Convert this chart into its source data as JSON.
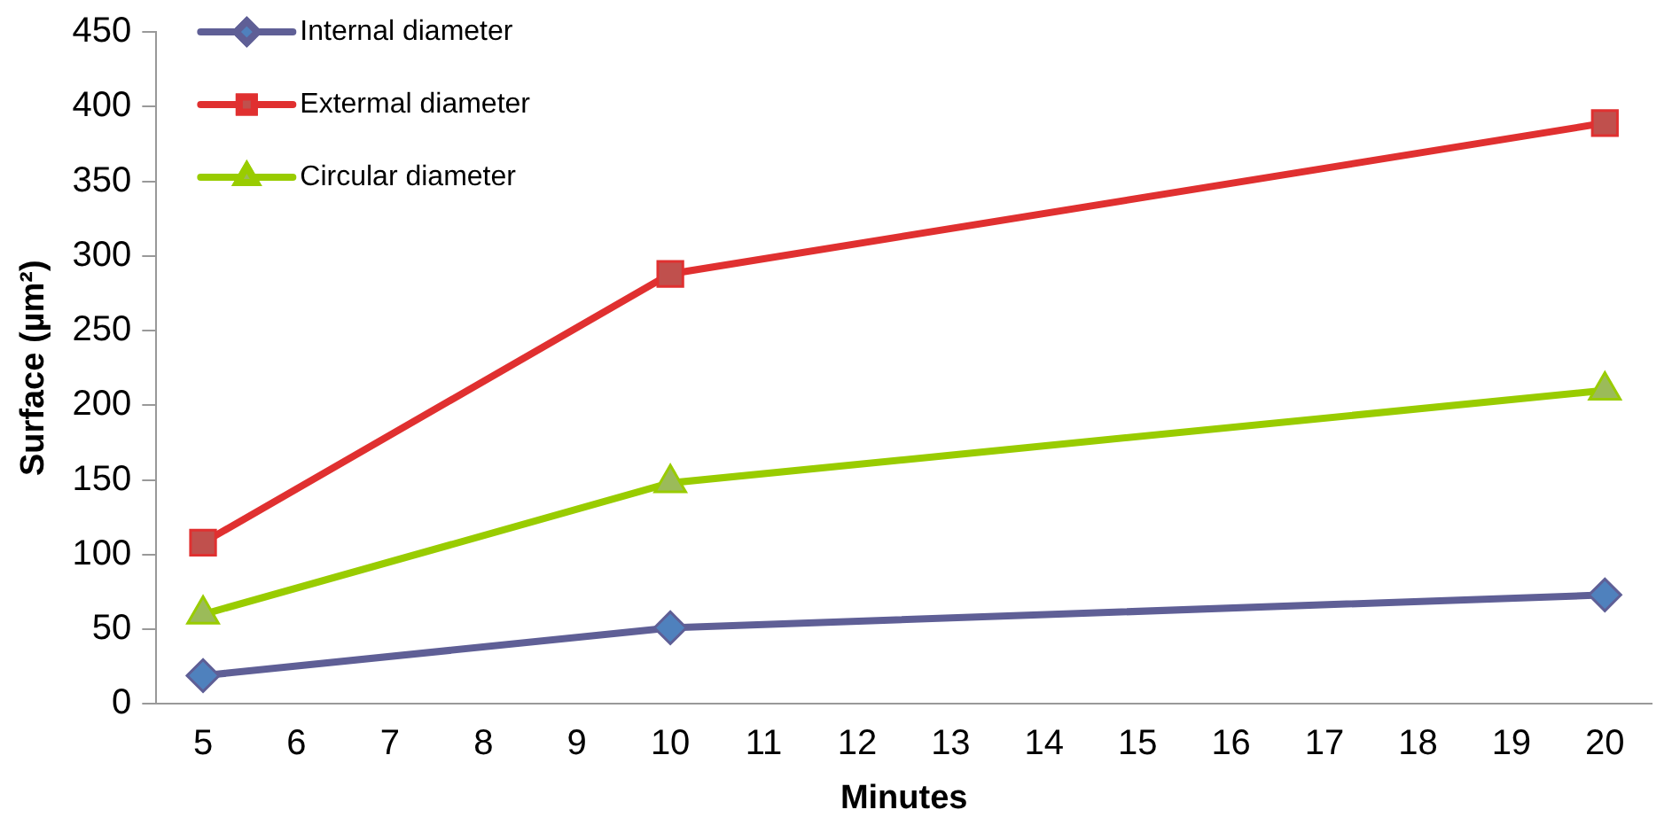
{
  "chart_data": {
    "type": "line",
    "xlabel": "Minutes",
    "ylabel": "Surface (µm²)",
    "categories": [
      "5",
      "6",
      "7",
      "8",
      "9",
      "10",
      "11",
      "12",
      "13",
      "14",
      "15",
      "16",
      "17",
      "18",
      "19",
      "20"
    ],
    "series": [
      {
        "name": "Internal diameter",
        "color": "#5f5f96",
        "marker": "diamond",
        "values": [
          19,
          null,
          null,
          null,
          null,
          51,
          null,
          null,
          null,
          null,
          null,
          null,
          null,
          null,
          null,
          73
        ]
      },
      {
        "name": "Extermal diameter",
        "color": "#e03030",
        "marker": "square",
        "values": [
          108,
          null,
          null,
          null,
          null,
          288,
          null,
          null,
          null,
          null,
          null,
          null,
          null,
          null,
          null,
          389
        ]
      },
      {
        "name": "Circular diameter",
        "color": "#99cc00",
        "marker": "triangle",
        "values": [
          60,
          null,
          null,
          null,
          null,
          148,
          null,
          null,
          null,
          null,
          null,
          null,
          null,
          null,
          null,
          210
        ]
      }
    ],
    "ylim": [
      0,
      450
    ],
    "yticks": [
      0,
      50,
      100,
      150,
      200,
      250,
      300,
      350,
      400,
      450
    ],
    "grid": false,
    "legend": "top left"
  }
}
